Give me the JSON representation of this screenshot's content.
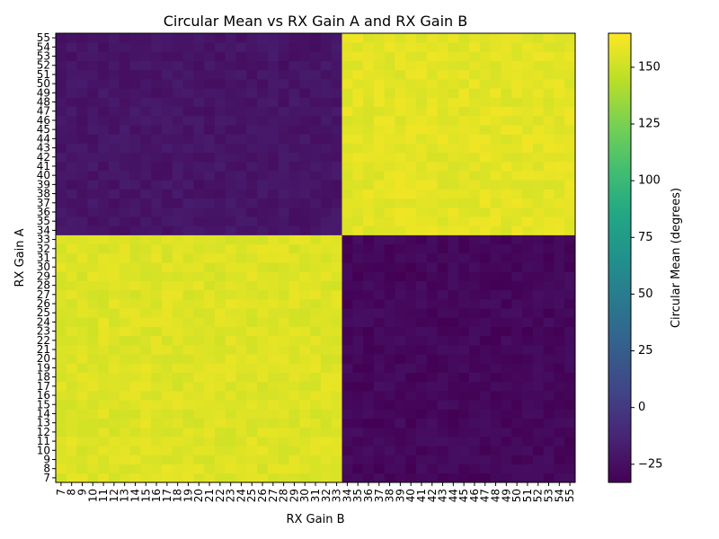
{
  "chart_data": {
    "type": "heatmap",
    "title": "Circular Mean vs RX Gain A and RX Gain B",
    "xlabel": "RX Gain B",
    "ylabel": "RX Gain A",
    "x": [
      7,
      8,
      9,
      10,
      11,
      12,
      13,
      14,
      15,
      16,
      17,
      18,
      19,
      20,
      21,
      22,
      23,
      24,
      25,
      26,
      27,
      28,
      29,
      30,
      31,
      32,
      33,
      34,
      35,
      36,
      37,
      38,
      39,
      40,
      41,
      42,
      43,
      44,
      45,
      46,
      47,
      48,
      49,
      50,
      51,
      52,
      53,
      54,
      55
    ],
    "y": [
      7,
      8,
      9,
      10,
      11,
      12,
      13,
      14,
      15,
      16,
      17,
      18,
      19,
      20,
      21,
      22,
      23,
      24,
      25,
      26,
      27,
      28,
      29,
      30,
      31,
      32,
      33,
      34,
      35,
      36,
      37,
      38,
      39,
      40,
      41,
      42,
      43,
      44,
      45,
      46,
      47,
      48,
      49,
      50,
      51,
      52,
      53,
      54,
      55
    ],
    "colorbar": {
      "label": "Circular Mean (degrees)",
      "ticks": [
        -25,
        0,
        25,
        50,
        75,
        100,
        125,
        150
      ],
      "range": [
        -33,
        165
      ],
      "colormap": "viridis"
    },
    "blocks": [
      {
        "x_range": [
          7,
          33
        ],
        "y_range": [
          7,
          33
        ],
        "approx_value": 155
      },
      {
        "x_range": [
          34,
          55
        ],
        "y_range": [
          34,
          55
        ],
        "approx_value": 157
      },
      {
        "x_range": [
          7,
          33
        ],
        "y_range": [
          34,
          55
        ],
        "approx_value": -22
      },
      {
        "x_range": [
          34,
          55
        ],
        "y_range": [
          7,
          33
        ],
        "approx_value": -29
      }
    ]
  }
}
